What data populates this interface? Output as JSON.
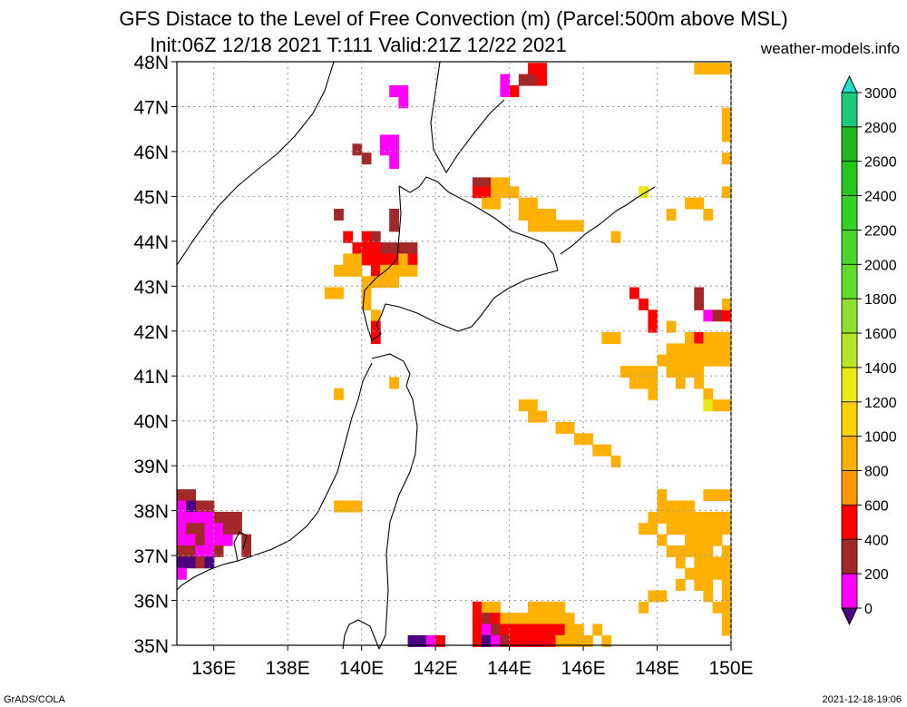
{
  "header": {
    "title_line1": "GFS Distace to the Level of Free Convection (m) (Parcel:500m above MSL)",
    "title_line2": "Init:06Z 12/18 2021 T:111 Valid:21Z 12/22 2021",
    "site": "weather-models.info"
  },
  "footer": {
    "left": "GrADS/COLA",
    "right": "2021-12-18-19:06"
  },
  "map": {
    "lat_labels": [
      "48N",
      "47N",
      "46N",
      "45N",
      "44N",
      "43N",
      "42N",
      "41N",
      "40N",
      "39N",
      "38N",
      "37N",
      "36N",
      "35N"
    ],
    "lat_values": [
      48,
      47,
      46,
      45,
      44,
      43,
      42,
      41,
      40,
      39,
      38,
      37,
      36,
      35
    ],
    "lon_labels": [
      "136E",
      "138E",
      "140E",
      "142E",
      "144E",
      "146E",
      "148E",
      "150E"
    ],
    "lon_values": [
      136,
      138,
      140,
      142,
      144,
      146,
      148,
      150
    ],
    "lon_range": [
      135,
      150
    ],
    "lat_range": [
      35,
      48
    ],
    "grid": "dotted"
  },
  "colorbar": {
    "labels": [
      "3000",
      "2800",
      "2600",
      "2400",
      "2200",
      "2000",
      "1800",
      "1600",
      "1400",
      "1200",
      "1000",
      "800",
      "600",
      "400",
      "200",
      "0"
    ],
    "colors": [
      "#1fe0c8",
      "#1ec87a",
      "#1fb81f",
      "#26c61b",
      "#33d122",
      "#4ad627",
      "#62db2b",
      "#8fe02e",
      "#b7e528",
      "#e8e814",
      "#ffd300",
      "#ffb000",
      "#ff9800",
      "#ff0000",
      "#a3282a",
      "#ff00ff",
      "#4b0082"
    ]
  },
  "cells": [
    [
      143.0,
      45.3,
      "#a3282a"
    ],
    [
      143.25,
      45.3,
      "#a3282a"
    ],
    [
      143.5,
      45.3,
      "#ffb000"
    ],
    [
      143.75,
      45.3,
      "#ffb000"
    ],
    [
      143.0,
      45.1,
      "#ff0000"
    ],
    [
      143.25,
      45.1,
      "#ff0000"
    ],
    [
      143.5,
      45.1,
      "#ffb000"
    ],
    [
      143.75,
      45.1,
      "#ffb000"
    ],
    [
      144.0,
      45.1,
      "#ffb000"
    ],
    [
      143.25,
      44.85,
      "#ffb000"
    ],
    [
      143.5,
      44.85,
      "#ffb000"
    ],
    [
      144.25,
      44.85,
      "#ffb000"
    ],
    [
      144.5,
      44.85,
      "#ffb000"
    ],
    [
      144.25,
      44.6,
      "#ffb000"
    ],
    [
      144.5,
      44.6,
      "#ffb000"
    ],
    [
      144.75,
      44.6,
      "#ffb000"
    ],
    [
      145.0,
      44.6,
      "#ffb000"
    ],
    [
      145.25,
      44.35,
      "#ffb000"
    ],
    [
      145.5,
      44.35,
      "#ffb000"
    ],
    [
      145.75,
      44.35,
      "#ffb000"
    ],
    [
      144.5,
      44.35,
      "#ffb000"
    ],
    [
      144.75,
      44.35,
      "#ffb000"
    ],
    [
      145.0,
      44.35,
      "#ffb000"
    ],
    [
      139.5,
      44.1,
      "#ff0000"
    ],
    [
      140.0,
      44.1,
      "#ff0000"
    ],
    [
      140.25,
      44.1,
      "#a3282a"
    ],
    [
      140.5,
      43.85,
      "#a3282a"
    ],
    [
      139.75,
      43.85,
      "#ff0000"
    ],
    [
      140.0,
      43.85,
      "#ff0000"
    ],
    [
      140.25,
      43.85,
      "#ff0000"
    ],
    [
      140.75,
      43.85,
      "#a3282a"
    ],
    [
      141.0,
      43.85,
      "#a3282a"
    ],
    [
      141.25,
      43.85,
      "#a3282a"
    ],
    [
      139.5,
      43.6,
      "#ffb000"
    ],
    [
      139.75,
      43.6,
      "#ffb000"
    ],
    [
      140.0,
      43.6,
      "#ff0000"
    ],
    [
      140.25,
      43.6,
      "#ff0000"
    ],
    [
      140.5,
      43.6,
      "#ff0000"
    ],
    [
      140.75,
      43.6,
      "#ff0000"
    ],
    [
      141.0,
      43.6,
      "#ffb000"
    ],
    [
      141.25,
      43.6,
      "#ff0000"
    ],
    [
      139.25,
      43.35,
      "#ffb000"
    ],
    [
      139.5,
      43.35,
      "#ffb000"
    ],
    [
      139.75,
      43.35,
      "#ffb000"
    ],
    [
      140.25,
      43.35,
      "#ff0000"
    ],
    [
      140.5,
      43.35,
      "#ffb000"
    ],
    [
      140.75,
      43.35,
      "#ffb000"
    ],
    [
      141.0,
      43.35,
      "#ffb000"
    ],
    [
      141.25,
      43.35,
      "#ffb000"
    ],
    [
      140.0,
      43.1,
      "#ffb000"
    ],
    [
      140.25,
      43.1,
      "#ffb000"
    ],
    [
      140.5,
      43.1,
      "#ffb000"
    ],
    [
      140.75,
      43.1,
      "#ffb000"
    ],
    [
      139.0,
      42.85,
      "#ffb000"
    ],
    [
      139.25,
      42.85,
      "#ffb000"
    ],
    [
      140.0,
      42.85,
      "#ffb000"
    ],
    [
      140.0,
      42.6,
      "#ffb000"
    ],
    [
      140.25,
      42.35,
      "#ffb000"
    ],
    [
      140.25,
      42.1,
      "#ff0000"
    ],
    [
      140.25,
      41.85,
      "#ff0000"
    ],
    [
      140.75,
      44.35,
      "#a3282a"
    ],
    [
      140.75,
      44.6,
      "#a3282a"
    ],
    [
      139.25,
      44.6,
      "#a3282a"
    ],
    [
      139.75,
      46.05,
      "#a3282a"
    ],
    [
      140.0,
      45.85,
      "#a3282a"
    ],
    [
      140.5,
      46.25,
      "#ff00ff"
    ],
    [
      140.75,
      46.25,
      "#ff00ff"
    ],
    [
      140.75,
      46.0,
      "#ff00ff"
    ],
    [
      140.75,
      45.75,
      "#ff00ff"
    ],
    [
      140.5,
      46.05,
      "#ff00ff"
    ],
    [
      141.0,
      47.35,
      "#ff00ff"
    ],
    [
      141.0,
      47.1,
      "#ff00ff"
    ],
    [
      140.75,
      47.35,
      "#ff00ff"
    ],
    [
      143.75,
      47.6,
      "#ff00ff"
    ],
    [
      144.0,
      47.35,
      "#ff0000"
    ],
    [
      143.75,
      47.35,
      "#ff00ff"
    ],
    [
      144.25,
      47.6,
      "#a3282a"
    ],
    [
      144.5,
      47.6,
      "#a3282a"
    ],
    [
      144.75,
      47.6,
      "#ff0000"
    ],
    [
      144.5,
      47.85,
      "#ff0000"
    ],
    [
      144.75,
      47.85,
      "#ff0000"
    ],
    [
      149.0,
      47.85,
      "#ffb000"
    ],
    [
      149.25,
      47.85,
      "#ffb000"
    ],
    [
      149.5,
      47.85,
      "#ffb000"
    ],
    [
      149.75,
      47.85,
      "#ffb000"
    ],
    [
      149.75,
      46.85,
      "#ffb000"
    ],
    [
      149.75,
      46.6,
      "#ffb000"
    ],
    [
      149.75,
      46.35,
      "#ffb000"
    ],
    [
      149.75,
      45.85,
      "#ffb000"
    ],
    [
      149.75,
      45.1,
      "#ffb000"
    ],
    [
      147.5,
      45.1,
      "#e8e814"
    ],
    [
      148.25,
      44.6,
      "#ffb000"
    ],
    [
      148.75,
      44.85,
      "#ffb000"
    ],
    [
      149.0,
      44.85,
      "#ffb000"
    ],
    [
      149.25,
      44.6,
      "#ffb000"
    ],
    [
      146.75,
      44.1,
      "#ffb000"
    ],
    [
      147.25,
      42.85,
      "#ff0000"
    ],
    [
      147.5,
      42.6,
      "#ff0000"
    ],
    [
      147.75,
      42.35,
      "#ff0000"
    ],
    [
      147.75,
      42.1,
      "#ff0000"
    ],
    [
      148.25,
      42.1,
      "#ffb000"
    ],
    [
      146.5,
      41.85,
      "#ffb000"
    ],
    [
      146.75,
      41.85,
      "#ffb000"
    ],
    [
      149.0,
      42.85,
      "#a3282a"
    ],
    [
      149.0,
      42.6,
      "#a3282a"
    ],
    [
      149.25,
      42.35,
      "#ff00ff"
    ],
    [
      149.5,
      42.35,
      "#a3282a"
    ],
    [
      149.75,
      42.35,
      "#ff0000"
    ],
    [
      149.75,
      42.6,
      "#ffb000"
    ],
    [
      148.75,
      41.85,
      "#ffb000"
    ],
    [
      149.0,
      41.85,
      "#ff0000"
    ],
    [
      149.25,
      41.85,
      "#ffb000"
    ],
    [
      149.5,
      41.85,
      "#ffb000"
    ],
    [
      149.75,
      41.85,
      "#ffb000"
    ],
    [
      148.25,
      41.6,
      "#ffb000"
    ],
    [
      148.5,
      41.6,
      "#ffb000"
    ],
    [
      148.75,
      41.6,
      "#ffb000"
    ],
    [
      149.0,
      41.6,
      "#ffb000"
    ],
    [
      149.25,
      41.6,
      "#ffb000"
    ],
    [
      149.5,
      41.6,
      "#ffb000"
    ],
    [
      149.75,
      41.6,
      "#ffb000"
    ],
    [
      148.0,
      41.35,
      "#ffb000"
    ],
    [
      148.25,
      41.35,
      "#ffb000"
    ],
    [
      148.5,
      41.35,
      "#ffb000"
    ],
    [
      148.75,
      41.35,
      "#ffb000"
    ],
    [
      149.0,
      41.35,
      "#ffb000"
    ],
    [
      149.25,
      41.35,
      "#ffb000"
    ],
    [
      149.5,
      41.35,
      "#ffb000"
    ],
    [
      149.75,
      41.35,
      "#ffb000"
    ],
    [
      147.0,
      41.1,
      "#ffb000"
    ],
    [
      147.25,
      41.1,
      "#ffb000"
    ],
    [
      147.5,
      41.1,
      "#ffb000"
    ],
    [
      147.75,
      41.1,
      "#ffb000"
    ],
    [
      148.25,
      41.1,
      "#ffb000"
    ],
    [
      148.5,
      41.1,
      "#ffb000"
    ],
    [
      148.75,
      41.1,
      "#ffb000"
    ],
    [
      149.0,
      41.1,
      "#ffb000"
    ],
    [
      147.25,
      40.85,
      "#ffb000"
    ],
    [
      147.5,
      40.85,
      "#ffb000"
    ],
    [
      147.75,
      40.85,
      "#ffb000"
    ],
    [
      148.5,
      40.85,
      "#ffb000"
    ],
    [
      149.0,
      40.85,
      "#ffb000"
    ],
    [
      147.75,
      40.6,
      "#ffb000"
    ],
    [
      149.25,
      40.6,
      "#ffb000"
    ],
    [
      149.25,
      40.35,
      "#e8e814"
    ],
    [
      149.5,
      40.35,
      "#ffb000"
    ],
    [
      149.75,
      40.35,
      "#ffb000"
    ],
    [
      144.25,
      40.35,
      "#ffb000"
    ],
    [
      144.5,
      40.35,
      "#ffb000"
    ],
    [
      144.5,
      40.1,
      "#ffb000"
    ],
    [
      144.75,
      40.1,
      "#ffb000"
    ],
    [
      145.25,
      39.85,
      "#ffb000"
    ],
    [
      145.5,
      39.85,
      "#ffb000"
    ],
    [
      145.75,
      39.6,
      "#ffb000"
    ],
    [
      146.0,
      39.6,
      "#ffb000"
    ],
    [
      146.25,
      39.35,
      "#ffb000"
    ],
    [
      146.5,
      39.35,
      "#ffb000"
    ],
    [
      146.75,
      39.1,
      "#ffb000"
    ],
    [
      139.25,
      40.6,
      "#ffb000"
    ],
    [
      140.75,
      40.85,
      "#ffb000"
    ],
    [
      139.25,
      38.1,
      "#ffb000"
    ],
    [
      139.5,
      38.1,
      "#ffb000"
    ],
    [
      139.75,
      38.1,
      "#ffb000"
    ],
    [
      148.0,
      38.35,
      "#ffb000"
    ],
    [
      148.0,
      38.1,
      "#ffb000"
    ],
    [
      148.25,
      38.1,
      "#ffb000"
    ],
    [
      148.5,
      38.1,
      "#ffb000"
    ],
    [
      148.75,
      38.1,
      "#ffb000"
    ],
    [
      149.25,
      38.35,
      "#ffb000"
    ],
    [
      149.5,
      38.35,
      "#ffb000"
    ],
    [
      149.75,
      38.35,
      "#ffb000"
    ],
    [
      147.75,
      37.85,
      "#ffb000"
    ],
    [
      148.0,
      37.85,
      "#ffb000"
    ],
    [
      148.25,
      37.85,
      "#ffb000"
    ],
    [
      148.5,
      37.85,
      "#ffb000"
    ],
    [
      148.75,
      37.85,
      "#ffb000"
    ],
    [
      149.0,
      37.85,
      "#ffb000"
    ],
    [
      149.25,
      37.85,
      "#ffb000"
    ],
    [
      149.5,
      37.85,
      "#ffb000"
    ],
    [
      149.75,
      37.85,
      "#ffb000"
    ],
    [
      147.5,
      37.6,
      "#ffb000"
    ],
    [
      147.75,
      37.6,
      "#ffb000"
    ],
    [
      148.25,
      37.6,
      "#ffb000"
    ],
    [
      148.5,
      37.6,
      "#ffb000"
    ],
    [
      148.75,
      37.6,
      "#ffb000"
    ],
    [
      149.0,
      37.6,
      "#ffb000"
    ],
    [
      149.25,
      37.6,
      "#ffb000"
    ],
    [
      149.5,
      37.6,
      "#ffb000"
    ],
    [
      149.75,
      37.6,
      "#ffb000"
    ],
    [
      148.0,
      37.35,
      "#ffb000"
    ],
    [
      148.75,
      37.35,
      "#ffb000"
    ],
    [
      149.0,
      37.35,
      "#ffb000"
    ],
    [
      149.25,
      37.35,
      "#ffb000"
    ],
    [
      149.5,
      37.35,
      "#ffb000"
    ],
    [
      148.25,
      37.1,
      "#ffb000"
    ],
    [
      148.5,
      37.1,
      "#ffb000"
    ],
    [
      148.75,
      37.1,
      "#ffb000"
    ],
    [
      149.0,
      37.1,
      "#ffb000"
    ],
    [
      149.25,
      37.1,
      "#ffb000"
    ],
    [
      149.75,
      37.1,
      "#ffb000"
    ],
    [
      148.5,
      36.85,
      "#ffb000"
    ],
    [
      149.0,
      36.85,
      "#ffb000"
    ],
    [
      149.25,
      36.85,
      "#ffb000"
    ],
    [
      149.5,
      36.85,
      "#ffb000"
    ],
    [
      149.75,
      36.85,
      "#ffb000"
    ],
    [
      148.75,
      36.6,
      "#ffb000"
    ],
    [
      149.0,
      36.6,
      "#ffb000"
    ],
    [
      149.25,
      36.6,
      "#ffb000"
    ],
    [
      149.5,
      36.6,
      "#ffb000"
    ],
    [
      149.75,
      36.6,
      "#ffb000"
    ],
    [
      148.5,
      36.35,
      "#ffb000"
    ],
    [
      149.0,
      36.35,
      "#ffb000"
    ],
    [
      149.25,
      36.35,
      "#ffb000"
    ],
    [
      149.75,
      36.35,
      "#ffb000"
    ],
    [
      147.75,
      36.1,
      "#ffb000"
    ],
    [
      148.0,
      36.1,
      "#ffb000"
    ],
    [
      149.25,
      36.1,
      "#ffb000"
    ],
    [
      149.75,
      36.1,
      "#ffb000"
    ],
    [
      147.5,
      35.85,
      "#ffb000"
    ],
    [
      149.5,
      35.85,
      "#ffb000"
    ],
    [
      149.75,
      35.85,
      "#ffb000"
    ],
    [
      149.75,
      35.6,
      "#ffb000"
    ],
    [
      149.75,
      35.35,
      "#ffb000"
    ],
    [
      135.0,
      38.35,
      "#a3282a"
    ],
    [
      135.25,
      38.35,
      "#a3282a"
    ],
    [
      135.5,
      38.1,
      "#a3282a"
    ],
    [
      135.75,
      38.1,
      "#a3282a"
    ],
    [
      135.0,
      38.1,
      "#ff00ff"
    ],
    [
      135.25,
      38.1,
      "#4b0082"
    ],
    [
      135.0,
      37.85,
      "#ff00ff"
    ],
    [
      135.25,
      37.85,
      "#ff00ff"
    ],
    [
      135.5,
      37.85,
      "#ff00ff"
    ],
    [
      135.75,
      37.85,
      "#ff00ff"
    ],
    [
      136.0,
      37.85,
      "#a3282a"
    ],
    [
      136.25,
      37.85,
      "#a3282a"
    ],
    [
      136.5,
      37.85,
      "#a3282a"
    ],
    [
      135.0,
      37.6,
      "#ff00ff"
    ],
    [
      135.25,
      37.6,
      "#a3282a"
    ],
    [
      135.5,
      37.6,
      "#a3282a"
    ],
    [
      135.75,
      37.6,
      "#ff00ff"
    ],
    [
      136.0,
      37.6,
      "#ff00ff"
    ],
    [
      136.25,
      37.6,
      "#a3282a"
    ],
    [
      136.5,
      37.6,
      "#a3282a"
    ],
    [
      135.0,
      37.35,
      "#ff00ff"
    ],
    [
      135.25,
      37.35,
      "#ff00ff"
    ],
    [
      135.5,
      37.35,
      "#a3282a"
    ],
    [
      135.75,
      37.35,
      "#ff00ff"
    ],
    [
      136.0,
      37.35,
      "#ff00ff"
    ],
    [
      136.25,
      37.35,
      "#ff00ff"
    ],
    [
      136.75,
      37.35,
      "#a3282a"
    ],
    [
      135.0,
      37.1,
      "#a3282a"
    ],
    [
      135.25,
      37.1,
      "#a3282a"
    ],
    [
      135.5,
      37.1,
      "#ff00ff"
    ],
    [
      135.75,
      37.1,
      "#ff00ff"
    ],
    [
      136.0,
      37.1,
      "#a3282a"
    ],
    [
      136.75,
      37.1,
      "#a3282a"
    ],
    [
      135.0,
      36.85,
      "#4b0082"
    ],
    [
      135.25,
      36.85,
      "#4b0082"
    ],
    [
      135.5,
      36.85,
      "#a3282a"
    ],
    [
      135.75,
      36.85,
      "#4b0082"
    ],
    [
      135.0,
      36.6,
      "#ff00ff"
    ],
    [
      143.0,
      35.85,
      "#ff0000"
    ],
    [
      143.25,
      35.85,
      "#ffb000"
    ],
    [
      143.5,
      35.85,
      "#ffb000"
    ],
    [
      144.5,
      35.85,
      "#ffb000"
    ],
    [
      144.75,
      35.85,
      "#ffb000"
    ],
    [
      145.0,
      35.85,
      "#ffb000"
    ],
    [
      145.25,
      35.85,
      "#ffb000"
    ],
    [
      143.0,
      35.6,
      "#ff0000"
    ],
    [
      143.25,
      35.6,
      "#a3282a"
    ],
    [
      143.5,
      35.6,
      "#ff0000"
    ],
    [
      143.75,
      35.6,
      "#ffb000"
    ],
    [
      144.0,
      35.6,
      "#ffb000"
    ],
    [
      144.25,
      35.6,
      "#ffb000"
    ],
    [
      144.5,
      35.6,
      "#ffb000"
    ],
    [
      144.75,
      35.6,
      "#ffb000"
    ],
    [
      145.0,
      35.6,
      "#ffb000"
    ],
    [
      145.25,
      35.6,
      "#ffb000"
    ],
    [
      145.5,
      35.6,
      "#ffb000"
    ],
    [
      143.0,
      35.35,
      "#ff0000"
    ],
    [
      143.25,
      35.35,
      "#ff00ff"
    ],
    [
      143.5,
      35.35,
      "#a3282a"
    ],
    [
      143.75,
      35.35,
      "#ff0000"
    ],
    [
      144.0,
      35.35,
      "#ff0000"
    ],
    [
      144.25,
      35.35,
      "#ff0000"
    ],
    [
      144.5,
      35.35,
      "#ff0000"
    ],
    [
      144.75,
      35.35,
      "#ff0000"
    ],
    [
      145.0,
      35.35,
      "#ff0000"
    ],
    [
      145.25,
      35.35,
      "#ff0000"
    ],
    [
      145.5,
      35.35,
      "#ffb000"
    ],
    [
      145.75,
      35.35,
      "#ffb000"
    ],
    [
      146.25,
      35.35,
      "#ffb000"
    ],
    [
      143.0,
      35.1,
      "#ff0000"
    ],
    [
      143.25,
      35.1,
      "#4b0082"
    ],
    [
      143.5,
      35.1,
      "#ff00ff"
    ],
    [
      143.75,
      35.1,
      "#a3282a"
    ],
    [
      144.0,
      35.1,
      "#ff0000"
    ],
    [
      144.25,
      35.1,
      "#ff0000"
    ],
    [
      144.5,
      35.1,
      "#ff0000"
    ],
    [
      144.75,
      35.1,
      "#ff0000"
    ],
    [
      145.0,
      35.1,
      "#ff0000"
    ],
    [
      145.25,
      35.1,
      "#ffb000"
    ],
    [
      145.5,
      35.1,
      "#ffb000"
    ],
    [
      145.75,
      35.1,
      "#ffb000"
    ],
    [
      146.0,
      35.1,
      "#ffb000"
    ],
    [
      146.5,
      35.1,
      "#ffb000"
    ],
    [
      141.25,
      35.1,
      "#4b0082"
    ],
    [
      141.5,
      35.1,
      "#4b0082"
    ],
    [
      141.75,
      35.1,
      "#ff00ff"
    ],
    [
      142.0,
      35.1,
      "#ff0000"
    ]
  ]
}
